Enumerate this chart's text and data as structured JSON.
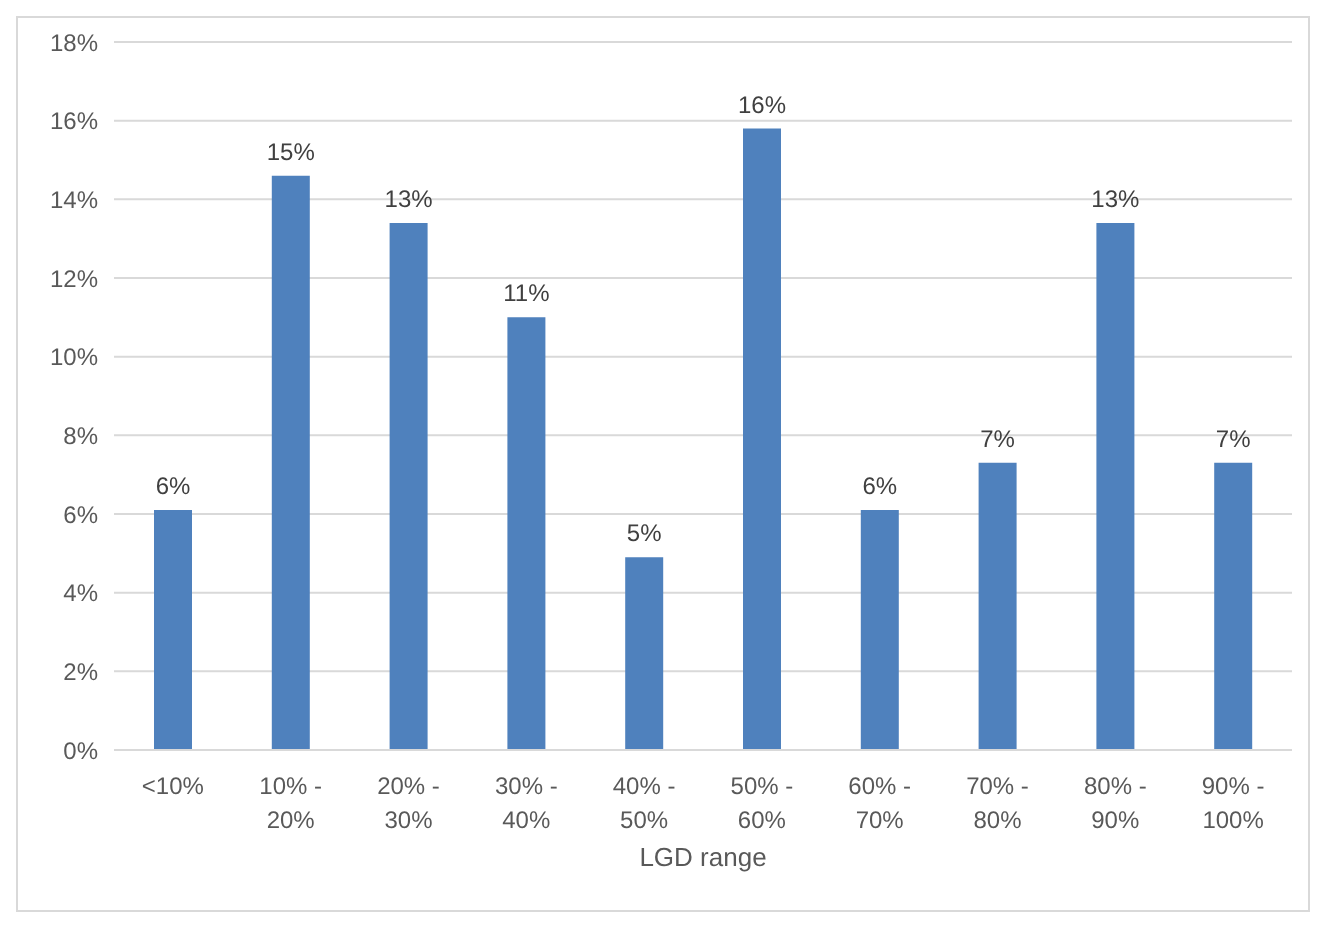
{
  "chart_data": {
    "type": "bar",
    "xlabel": "LGD range",
    "categories": [
      "<10%",
      "10% - 20%",
      "20% - 30%",
      "30% - 40%",
      "40% - 50%",
      "50% - 60%",
      "60% - 70%",
      "70% - 80%",
      "80% - 90%",
      "90% - 100%"
    ],
    "values": [
      6.1,
      14.6,
      13.4,
      11.0,
      4.9,
      15.8,
      6.1,
      7.3,
      13.4,
      7.3
    ],
    "value_labels": [
      "6%",
      "15%",
      "13%",
      "11%",
      "5%",
      "16%",
      "6%",
      "7%",
      "13%",
      "7%"
    ],
    "color": "#4f81bd",
    "ylim": [
      0,
      18
    ],
    "yticks": [
      {
        "value": 0,
        "label": "0%"
      },
      {
        "value": 2,
        "label": "2%"
      },
      {
        "value": 4,
        "label": "4%"
      },
      {
        "value": 6,
        "label": "6%"
      },
      {
        "value": 8,
        "label": "8%"
      },
      {
        "value": 10,
        "label": "10%"
      },
      {
        "value": 12,
        "label": "12%"
      },
      {
        "value": 14,
        "label": "14%"
      },
      {
        "value": 16,
        "label": "16%"
      },
      {
        "value": 18,
        "label": "18%"
      }
    ],
    "grid": "y"
  }
}
